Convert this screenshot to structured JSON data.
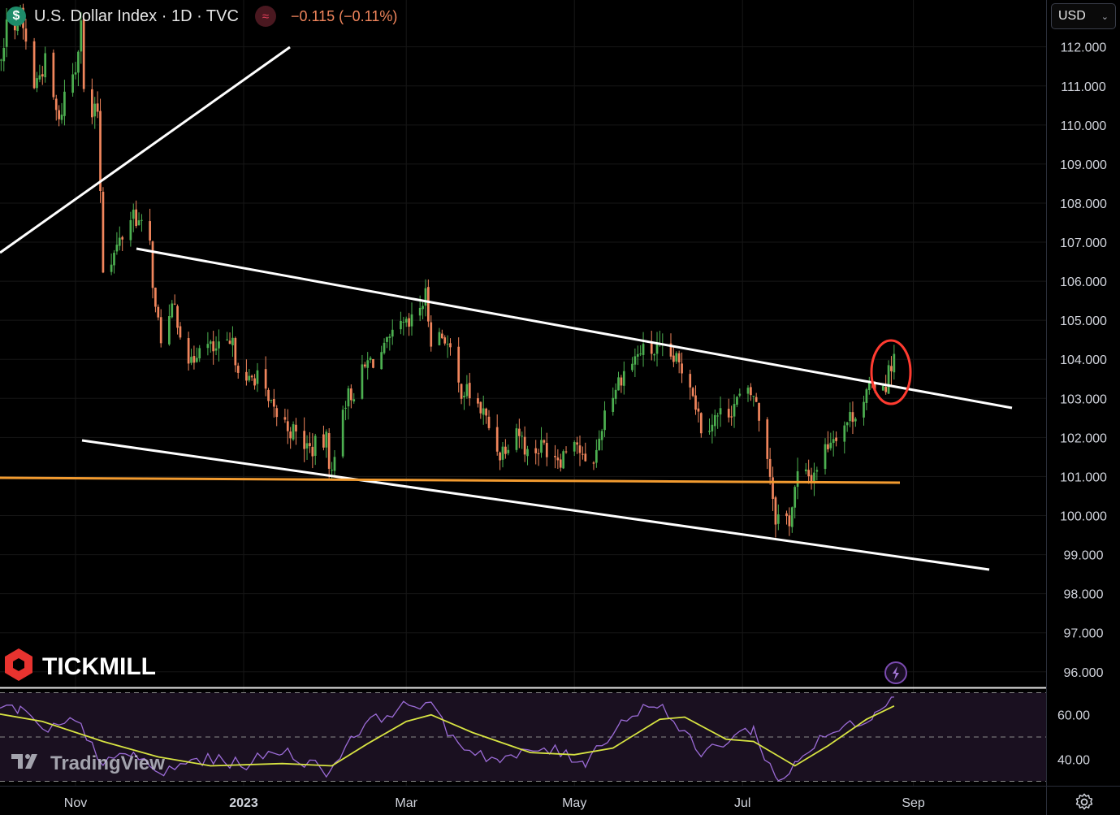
{
  "header": {
    "symbol_badge": "$",
    "title": "U.S. Dollar Index · 1D · TVC",
    "change": "−0.115 (−0.11%)"
  },
  "currency_selector": {
    "label": "USD"
  },
  "logos": {
    "brand": "TICKMILL",
    "platform": "TradingView"
  },
  "icons": {
    "symbol": "dollar-icon",
    "data-status": "wave-icon",
    "currency-menu": "chevron-down-icon",
    "replay": "lightning-icon",
    "settings": "gear-icon"
  },
  "colors": {
    "background": "#000000",
    "up_candle": "#4caf50",
    "down_candle": "#f0855c",
    "support_line": "#f29b30",
    "trend_lines": "#ffffff",
    "highlight_circle": "#ff3b30",
    "rsi_line": "#9b6bd6",
    "rsi_ma": "#d7e342"
  },
  "chart_data": [
    {
      "type": "candlestick",
      "title": "U.S. Dollar Index · 1D · TVC",
      "ylim": [
        95.6,
        113.2
      ],
      "y_ticks": [
        "112.000",
        "111.000",
        "110.000",
        "109.000",
        "108.000",
        "107.000",
        "106.000",
        "105.000",
        "104.000",
        "103.000",
        "102.000",
        "101.000",
        "100.000",
        "99.000",
        "98.000",
        "97.000",
        "96.000"
      ],
      "x_ticks": [
        "Nov",
        "2023",
        "Mar",
        "May",
        "Jul",
        "Sep"
      ],
      "x_tick_dates": [
        "2022-11-01",
        "2023-01-01",
        "2023-03-01",
        "2023-05-01",
        "2023-07-01",
        "2023-09-01"
      ],
      "close_path": [
        [
          "2022-09-27",
          111.3
        ],
        [
          "2022-09-30",
          112.9
        ],
        [
          "2022-10-04",
          111.5
        ],
        [
          "2022-10-07",
          112.5
        ],
        [
          "2022-10-12",
          112.8
        ],
        [
          "2022-10-17",
          111.0
        ],
        [
          "2022-10-21",
          111.6
        ],
        [
          "2022-10-26",
          110.0
        ],
        [
          "2022-10-28",
          110.8
        ],
        [
          "2022-11-01",
          111.5
        ],
        [
          "2022-11-03",
          112.8
        ],
        [
          "2022-11-04",
          110.8
        ],
        [
          "2022-11-07",
          110.2
        ],
        [
          "2022-11-09",
          110.4
        ],
        [
          "2022-11-10",
          108.4
        ],
        [
          "2022-11-11",
          106.4
        ],
        [
          "2022-11-15",
          106.7
        ],
        [
          "2022-11-22",
          107.8
        ],
        [
          "2022-11-28",
          106.9
        ],
        [
          "2022-11-30",
          105.2
        ],
        [
          "2022-12-02",
          104.6
        ],
        [
          "2022-12-07",
          105.3
        ],
        [
          "2022-12-13",
          103.8
        ],
        [
          "2022-12-16",
          104.5
        ],
        [
          "2022-12-21",
          104.2
        ],
        [
          "2022-12-28",
          104.3
        ],
        [
          "2023-01-02",
          103.3
        ],
        [
          "2023-01-06",
          103.7
        ],
        [
          "2023-01-10",
          102.8
        ],
        [
          "2023-01-18",
          102.2
        ],
        [
          "2023-01-25",
          101.7
        ],
        [
          "2023-01-31",
          101.9
        ],
        [
          "2023-02-02",
          101.0
        ],
        [
          "2023-02-06",
          102.9
        ],
        [
          "2023-02-10",
          103.2
        ],
        [
          "2023-02-15",
          103.9
        ],
        [
          "2023-02-21",
          104.2
        ],
        [
          "2023-02-27",
          104.8
        ],
        [
          "2023-03-02",
          104.8
        ],
        [
          "2023-03-08",
          105.6
        ],
        [
          "2023-03-10",
          104.6
        ],
        [
          "2023-03-15",
          104.6
        ],
        [
          "2023-03-20",
          103.3
        ],
        [
          "2023-03-24",
          103.1
        ],
        [
          "2023-03-29",
          102.6
        ],
        [
          "2023-04-04",
          101.6
        ],
        [
          "2023-04-10",
          102.3
        ],
        [
          "2023-04-14",
          101.6
        ],
        [
          "2023-04-20",
          101.8
        ],
        [
          "2023-04-26",
          101.5
        ],
        [
          "2023-05-01",
          102.1
        ],
        [
          "2023-05-05",
          101.2
        ],
        [
          "2023-05-09",
          101.6
        ],
        [
          "2023-05-12",
          102.7
        ],
        [
          "2023-05-18",
          103.6
        ],
        [
          "2023-05-25",
          104.2
        ],
        [
          "2023-05-31",
          104.2
        ],
        [
          "2023-06-06",
          104.0
        ],
        [
          "2023-06-12",
          103.5
        ],
        [
          "2023-06-16",
          102.3
        ],
        [
          "2023-06-21",
          102.5
        ],
        [
          "2023-06-26",
          102.7
        ],
        [
          "2023-06-30",
          103.0
        ],
        [
          "2023-07-05",
          103.1
        ],
        [
          "2023-07-10",
          101.6
        ],
        [
          "2023-07-13",
          100.0
        ],
        [
          "2023-07-18",
          99.9
        ],
        [
          "2023-07-21",
          101.0
        ],
        [
          "2023-07-26",
          101.0
        ],
        [
          "2023-08-02",
          102.0
        ],
        [
          "2023-08-09",
          102.5
        ],
        [
          "2023-08-14",
          103.0
        ],
        [
          "2023-08-18",
          103.4
        ],
        [
          "2023-08-22",
          103.4
        ],
        [
          "2023-08-24",
          103.9
        ],
        [
          "2023-08-25",
          104.1
        ]
      ],
      "candle_count_approx": 240
    },
    {
      "type": "line",
      "title": "RSI",
      "ylim": [
        28,
        72
      ],
      "y_ticks": [
        "60.00",
        "40.00"
      ],
      "bands": [
        70,
        50,
        30
      ],
      "series": [
        {
          "role": "rsi",
          "points": [
            [
              "2022-09-27",
              65
            ],
            [
              "2022-10-05",
              62
            ],
            [
              "2022-10-12",
              63
            ],
            [
              "2022-10-20",
              52
            ],
            [
              "2022-11-01",
              57
            ],
            [
              "2022-11-07",
              48
            ],
            [
              "2022-11-11",
              37
            ],
            [
              "2022-11-22",
              43
            ],
            [
              "2022-12-01",
              33
            ],
            [
              "2022-12-15",
              40
            ],
            [
              "2023-01-02",
              38
            ],
            [
              "2023-01-15",
              44
            ],
            [
              "2023-02-01",
              34
            ],
            [
              "2023-02-10",
              52
            ],
            [
              "2023-02-24",
              62
            ],
            [
              "2023-03-08",
              66
            ],
            [
              "2023-03-20",
              47
            ],
            [
              "2023-04-04",
              39
            ],
            [
              "2023-04-20",
              45
            ],
            [
              "2023-05-05",
              39
            ],
            [
              "2023-05-18",
              57
            ],
            [
              "2023-05-31",
              66
            ],
            [
              "2023-06-16",
              42
            ],
            [
              "2023-06-30",
              52
            ],
            [
              "2023-07-05",
              53
            ],
            [
              "2023-07-14",
              29
            ],
            [
              "2023-07-21",
              40
            ],
            [
              "2023-08-01",
              51
            ],
            [
              "2023-08-09",
              55
            ],
            [
              "2023-08-18",
              61
            ],
            [
              "2023-08-22",
              66
            ],
            [
              "2023-08-24",
              69
            ],
            [
              "2023-08-25",
              68
            ]
          ]
        },
        {
          "role": "rsi-ma",
          "points": [
            [
              "2022-09-27",
              62
            ],
            [
              "2022-10-20",
              57
            ],
            [
              "2022-11-11",
              48
            ],
            [
              "2022-12-01",
              41
            ],
            [
              "2022-12-20",
              37
            ],
            [
              "2023-01-15",
              38
            ],
            [
              "2023-02-02",
              37
            ],
            [
              "2023-02-15",
              47
            ],
            [
              "2023-03-01",
              57
            ],
            [
              "2023-03-10",
              60
            ],
            [
              "2023-03-25",
              52
            ],
            [
              "2023-04-15",
              43
            ],
            [
              "2023-05-01",
              42
            ],
            [
              "2023-05-15",
              45
            ],
            [
              "2023-06-01",
              58
            ],
            [
              "2023-06-10",
              59
            ],
            [
              "2023-06-25",
              49
            ],
            [
              "2023-07-05",
              48
            ],
            [
              "2023-07-20",
              37
            ],
            [
              "2023-08-01",
              46
            ],
            [
              "2023-08-15",
              58
            ],
            [
              "2023-08-25",
              64
            ]
          ]
        }
      ]
    }
  ]
}
